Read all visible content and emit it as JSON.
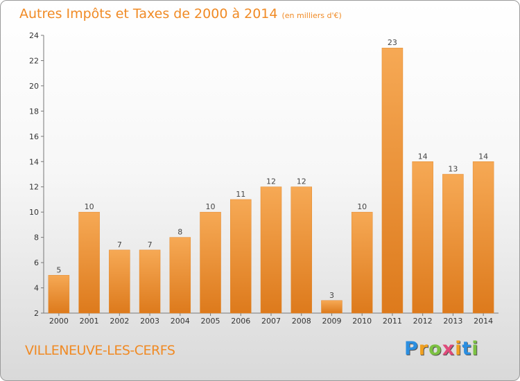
{
  "chart_data": {
    "type": "bar",
    "title": "Autres Impôts et Taxes de 2000 à 2014",
    "subtitle": "(en milliers d'€)",
    "categories": [
      "2000",
      "2001",
      "2002",
      "2003",
      "2004",
      "2005",
      "2006",
      "2007",
      "2008",
      "2009",
      "2010",
      "2011",
      "2012",
      "2013",
      "2014"
    ],
    "values": [
      5,
      10,
      7,
      7,
      8,
      10,
      11,
      12,
      12,
      3,
      10,
      23,
      14,
      13,
      14
    ],
    "xlabel": "",
    "ylabel": "",
    "ylim": [
      2,
      24
    ],
    "yticks": [
      2,
      4,
      6,
      8,
      10,
      12,
      14,
      16,
      18,
      20,
      22,
      24
    ],
    "grid": false,
    "bar_color": "#f08a24"
  },
  "footer": {
    "commune": "VILLENEUVE-LES-CERFS",
    "logo_letters": [
      "P",
      "r",
      "o",
      "x",
      "i",
      "t",
      "i"
    ],
    "logo_colors": [
      "#2b8ee0",
      "#f0a020",
      "#7cc142",
      "#e04a7a",
      "#f0a020",
      "#2b8ee0",
      "#7cc142"
    ]
  }
}
